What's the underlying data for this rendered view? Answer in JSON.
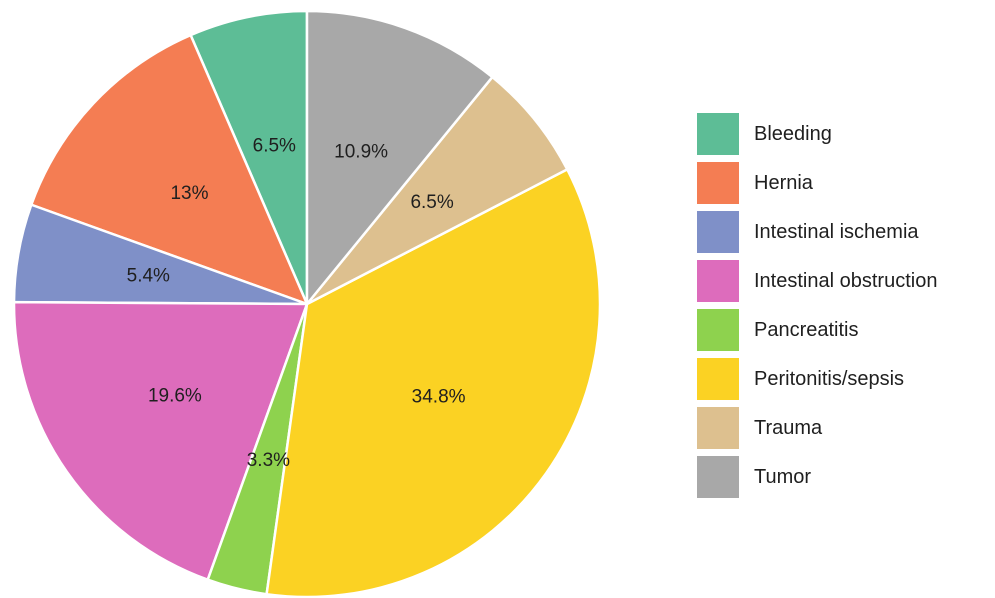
{
  "chart_data": {
    "type": "pie",
    "categories": [
      "Bleeding",
      "Hernia",
      "Intestinal ischemia",
      "Intestinal obstruction",
      "Pancreatitis",
      "Peritonitis/sepsis",
      "Trauma",
      "Tumor"
    ],
    "values": [
      6.5,
      13,
      5.4,
      19.6,
      3.3,
      34.8,
      6.5,
      10.9
    ],
    "data_labels": [
      "6.5%",
      "13%",
      "5.4%",
      "19.6%",
      "3.3%",
      "34.8%",
      "6.5%",
      "10.9%"
    ],
    "colors": [
      "#5dbd96",
      "#f47d53",
      "#7f90c8",
      "#dd6cbc",
      "#8ed24e",
      "#fbd223",
      "#ddc08f",
      "#a8a8a8"
    ],
    "start_angle_deg": 0,
    "direction": "counterclockwise",
    "legend": {
      "position": "right",
      "entries": [
        "Bleeding",
        "Hernia",
        "Intestinal ischemia",
        "Intestinal obstruction",
        "Pancreatitis",
        "Peritonitis/sepsis",
        "Trauma",
        "Tumor"
      ]
    },
    "title": "",
    "xlabel": "",
    "ylabel": ""
  }
}
